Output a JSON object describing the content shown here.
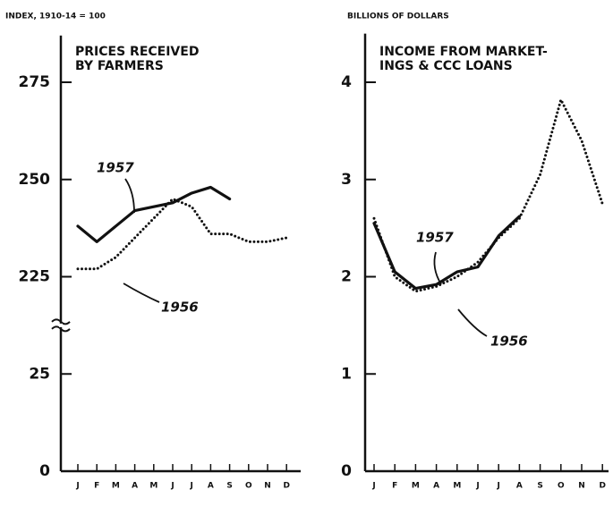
{
  "chart_data": [
    {
      "type": "line",
      "title": [
        "PRICES RECEIVED",
        "BY FARMERS"
      ],
      "y_label": "INDEX, 1910-14 = 100",
      "categories": [
        "J",
        "F",
        "M",
        "A",
        "M",
        "J",
        "J",
        "A",
        "S",
        "O",
        "N",
        "D"
      ],
      "series": [
        {
          "name": "1957",
          "color": "#111111",
          "style": "solid",
          "values": [
            238,
            234,
            238,
            242,
            243,
            244,
            246.5,
            248,
            245,
            null,
            null,
            null
          ]
        },
        {
          "name": "1956",
          "color": "#111111",
          "style": "dotted",
          "values": [
            227,
            227,
            230,
            235,
            240,
            245,
            243,
            236,
            236,
            234,
            234,
            235
          ]
        }
      ],
      "ylim": [
        0,
        287
      ],
      "yticks": [
        0,
        25,
        225,
        250,
        275
      ],
      "axis_break": true,
      "grid": false
    },
    {
      "type": "line",
      "title": [
        "INCOME FROM MARKET-",
        "INGS & CCC LOANS"
      ],
      "y_label": "BILLIONS OF DOLLARS",
      "categories": [
        "J",
        "F",
        "M",
        "A",
        "M",
        "J",
        "J",
        "A",
        "S",
        "O",
        "N",
        "D"
      ],
      "series": [
        {
          "name": "1957",
          "color": "#111111",
          "style": "solid",
          "values": [
            2.55,
            2.05,
            1.88,
            1.92,
            2.05,
            2.1,
            2.42,
            2.62,
            null,
            null,
            null,
            null
          ]
        },
        {
          "name": "1956",
          "color": "#111111",
          "style": "dotted",
          "values": [
            2.6,
            2.0,
            1.85,
            1.9,
            2.0,
            2.15,
            2.4,
            2.6,
            3.05,
            3.82,
            3.4,
            2.75
          ]
        }
      ],
      "ylim": [
        0,
        4.5
      ],
      "yticks": [
        0,
        1,
        2,
        3,
        4
      ],
      "axis_break": false,
      "grid": false
    }
  ]
}
